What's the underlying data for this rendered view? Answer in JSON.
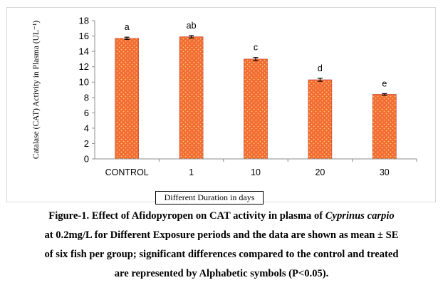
{
  "chart_data": {
    "type": "bar",
    "title": "",
    "ylabel": "Catalase (CAT) Activity in Plasma (UL⁻¹)",
    "xlabel": "Different Duration in days",
    "categories": [
      "CONTROL",
      "1",
      "10",
      "20",
      "30"
    ],
    "values": [
      15.7,
      15.9,
      13.0,
      10.3,
      8.4
    ],
    "errors": [
      0.15,
      0.15,
      0.2,
      0.2,
      0.1
    ],
    "significance_letters": [
      "a",
      "ab",
      "c",
      "d",
      "e"
    ],
    "ylim": [
      0,
      18
    ],
    "yticks": [
      0,
      2,
      4,
      6,
      8,
      10,
      12,
      14,
      16,
      18
    ],
    "bar_color": "#f26b3a",
    "bar_dot_color": "#ffd24d",
    "grid": false,
    "legend": "none"
  },
  "caption": {
    "line1": "Figure-1. Effect of Afidopyropen on CAT activity in plasma of ",
    "line1_species": "Cyprinus carpio",
    "line2": "at 0.2mg/L for Different Exposure periods and the data are shown as mean ± SE",
    "line3": "of six fish per group; significant differences compared to the control and treated",
    "line4": "are represented by Alphabetic symbols (P<0.05)."
  }
}
